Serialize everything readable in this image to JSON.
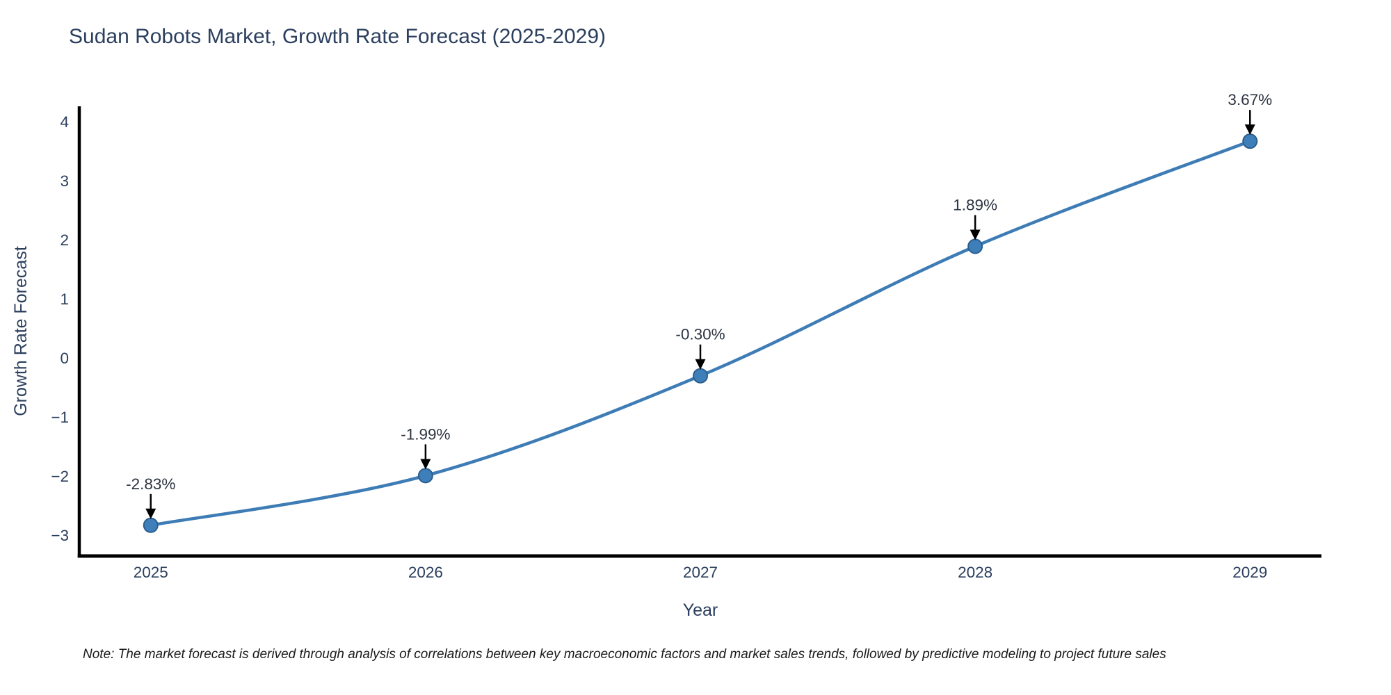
{
  "title": "Sudan Robots Market, Growth Rate Forecast (2025-2029)",
  "note": "Note: The market forecast is derived through analysis of correlations between key macroeconomic factors and market sales trends, followed by predictive modeling to project future sales",
  "chart_data": {
    "type": "line",
    "title": "Sudan Robots Market, Growth Rate Forecast (2025-2029)",
    "xlabel": "Year",
    "ylabel": "Growth Rate Forecast",
    "x": [
      2025,
      2026,
      2027,
      2028,
      2029
    ],
    "values": [
      -2.83,
      -1.99,
      -0.3,
      1.89,
      3.67
    ],
    "point_labels": [
      "-2.83%",
      "-1.99%",
      "-0.30%",
      "1.89%",
      "3.67%"
    ],
    "xticks": [
      "2025",
      "2026",
      "2027",
      "2028",
      "2029"
    ],
    "yticks": [
      4,
      3,
      2,
      1,
      0,
      -1,
      -2,
      -3
    ],
    "xlim": [
      2024.74,
      2029.26
    ],
    "ylim": [
      -3.35,
      4.26
    ],
    "grid": false,
    "legend": "none",
    "marker_style": "circle",
    "annotation_arrows": true,
    "colors": {
      "line": "#3e7cb6",
      "marker_fill": "#3f7fb9",
      "marker_edge": "#2b5e8e",
      "axis_line": "#000000",
      "tick_text": "#2b3f5e",
      "axis_title_text": "#2b3f5e",
      "title_text": "#2b3f5e",
      "annotation_text": "#2b3440",
      "arrow": "#000000",
      "background": "#ffffff"
    }
  }
}
